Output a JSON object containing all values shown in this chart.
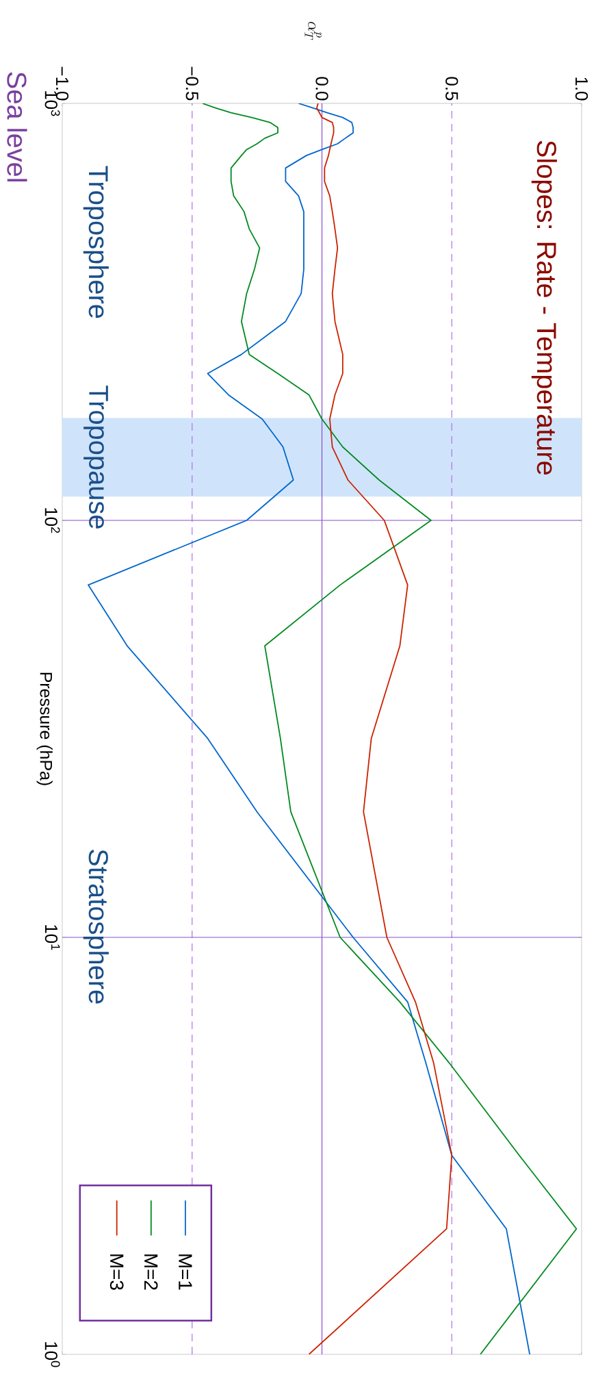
{
  "chart_data": {
    "type": "line",
    "title": "Slopes: Rate - Temperature",
    "xlabel": "\\alpha_T^p",
    "ylabel": "Pressure (hPa)",
    "log": "y",
    "xlim": [
      -1,
      1
    ],
    "ylim": [
      1,
      1000
    ],
    "xticks": [
      {
        "value": -1,
        "label": "−1.0"
      },
      {
        "value": -0.5,
        "label": "−0.5"
      },
      {
        "value": 0,
        "label": "0.0"
      },
      {
        "value": 0.5,
        "label": "0.5"
      },
      {
        "value": 1,
        "label": "1.0"
      }
    ],
    "yticks": [
      {
        "value": 1000,
        "label": "10$^{3}$"
      },
      {
        "value": 100,
        "label": "10$^{2}$"
      },
      {
        "value": 10,
        "label": "10$^{1}$"
      },
      {
        "value": 1,
        "label": "10$^{0}$"
      }
    ],
    "series": [
      {
        "name": "M=1",
        "color": "#0066cc",
        "x": [
          -0.09,
          -0.035,
          0.02,
          0.08,
          0.115,
          0.12,
          0.12,
          0.09,
          0.06,
          0.0,
          -0.06,
          -0.14,
          -0.14,
          -0.09,
          -0.07,
          -0.07,
          -0.08,
          -0.14,
          -0.31,
          -0.44,
          -0.36,
          -0.23,
          -0.15,
          -0.11,
          -0.29,
          -0.9,
          -0.75,
          -0.44,
          -0.25,
          0.12,
          0.33,
          0.4,
          0.5,
          0.71,
          0.8
        ],
        "values": [
          1000,
          975,
          950,
          925,
          900,
          875,
          850,
          825,
          800,
          775,
          750,
          700,
          650,
          600,
          550,
          400,
          350,
          300,
          250,
          225,
          200,
          175,
          150,
          125,
          100,
          70,
          50,
          30,
          20,
          10,
          7,
          5,
          3,
          2,
          1
        ]
      },
      {
        "name": "M=2",
        "color": "#008a20",
        "x": [
          -0.46,
          -0.41,
          -0.35,
          -0.27,
          -0.2,
          -0.17,
          -0.17,
          -0.22,
          -0.25,
          -0.29,
          -0.31,
          -0.35,
          -0.35,
          -0.34,
          -0.3,
          -0.28,
          -0.24,
          -0.26,
          -0.29,
          -0.31,
          -0.28,
          -0.17,
          -0.05,
          0.0,
          0.08,
          0.22,
          0.42,
          0.07,
          -0.22,
          -0.16,
          -0.12,
          0.07,
          0.3,
          0.49,
          0.76,
          0.98,
          0.61
        ],
        "values": [
          1000,
          975,
          950,
          925,
          900,
          875,
          850,
          825,
          800,
          775,
          750,
          700,
          650,
          600,
          550,
          500,
          450,
          400,
          350,
          300,
          250,
          225,
          200,
          175,
          150,
          125,
          100,
          70,
          50,
          30,
          20,
          10,
          7,
          5,
          3,
          2,
          1
        ]
      },
      {
        "name": "M=3",
        "color": "#cc2200",
        "x": [
          -0.015,
          -0.02,
          -0.01,
          0.0,
          0.04,
          0.045,
          0.045,
          0.04,
          0.035,
          0.03,
          0.025,
          0.01,
          0.01,
          0.03,
          0.04,
          0.05,
          0.06,
          0.05,
          0.04,
          0.05,
          0.08,
          0.08,
          0.05,
          0.03,
          0.04,
          0.1,
          0.24,
          0.33,
          0.3,
          0.19,
          0.16,
          0.25,
          0.36,
          0.43,
          0.5,
          0.48,
          -0.05
        ],
        "values": [
          1000,
          975,
          950,
          925,
          900,
          875,
          850,
          825,
          800,
          775,
          750,
          700,
          650,
          600,
          550,
          500,
          450,
          400,
          350,
          300,
          250,
          225,
          200,
          175,
          150,
          125,
          100,
          70,
          50,
          30,
          20,
          10,
          7,
          5,
          3,
          2,
          1
        ]
      }
    ],
    "ref_lines": [
      {
        "axis": "x",
        "value": 0,
        "color": "#8a4fc8",
        "line_style": "solid"
      },
      {
        "axis": "x",
        "value": -0.5,
        "color": "#b36ef0",
        "line_style": "dashed"
      },
      {
        "axis": "x",
        "value": 0.5,
        "color": "#b36ef0",
        "line_style": "dashed"
      },
      {
        "axis": "y",
        "value": 100,
        "color": "#8a4fc8",
        "line_style": "solid"
      },
      {
        "axis": "y",
        "value": 10,
        "color": "#8a4fc8",
        "line_style": "solid"
      }
    ],
    "bands": [
      {
        "axis": "y",
        "from": 176,
        "to": 114,
        "label": "Tropopause",
        "color": "#cfe4fb"
      }
    ],
    "annotations": [
      "Troposphere",
      "Stratosphere",
      "Sea level"
    ],
    "legend": "bottom left",
    "line_style": "solid",
    "marker": "none"
  }
}
